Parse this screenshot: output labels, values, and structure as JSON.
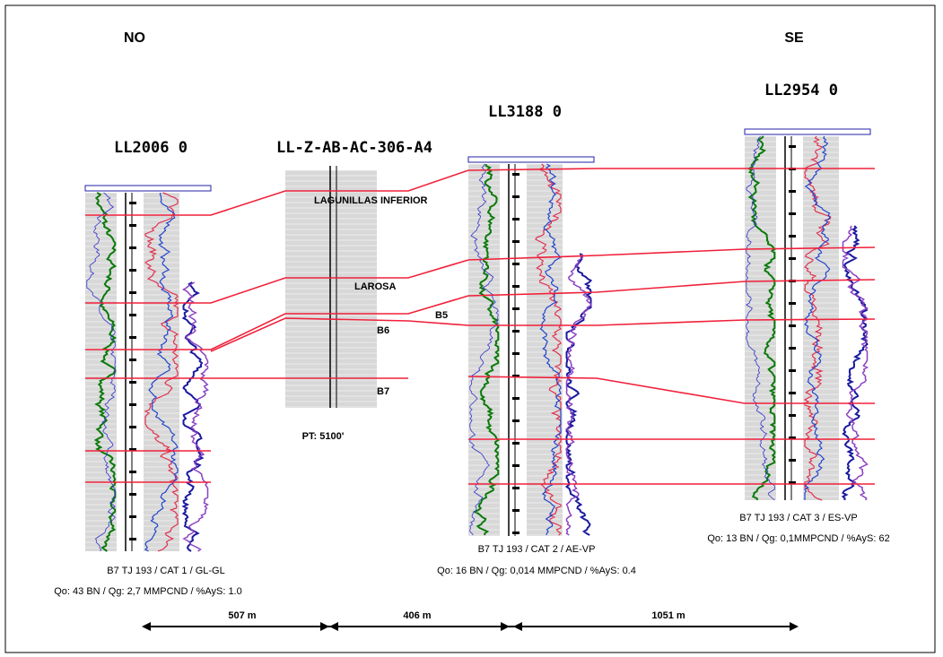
{
  "header": {
    "left": "NO",
    "right": "SE"
  },
  "wells": [
    {
      "name": "LL2006 0",
      "info": [
        "B7 TJ 193 / CAT 1 / GL-GL",
        "Qo: 43 BN / Qg: 2,7 MMPCND / %AyS: 1.0"
      ]
    },
    {
      "name": "LL-Z-AB-AC-306-A4",
      "info": [
        "PT: 5100'"
      ]
    },
    {
      "name": "LL3188 0",
      "info": [
        "B7 TJ 193 / CAT 2 / AE-VP",
        "Qo: 16 BN / Qg: 0,014 MMPCND / %AyS: 0.4"
      ]
    },
    {
      "name": "LL2954 0",
      "info": [
        "B7 TJ 193 / CAT 3 / ES-VP",
        "Qo: 13 BN / Qg: 0,1MMPCND / %AyS: 62"
      ]
    }
  ],
  "markers": [
    "LAGUNILLAS INFERIOR",
    "LAROSA",
    "B5",
    "B6",
    "B7"
  ],
  "distances": [
    "507 m",
    "406 m",
    "1051 m"
  ]
}
